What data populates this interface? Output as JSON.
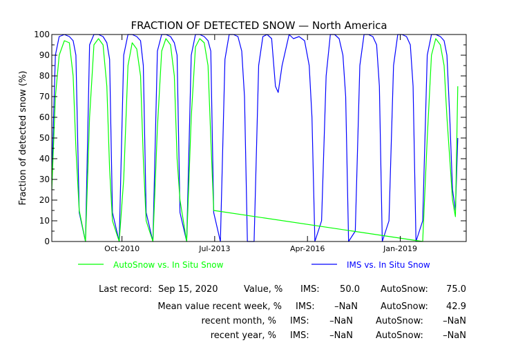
{
  "chart_data": {
    "type": "line",
    "title": "FRACTION OF DETECTED SNOW — North America",
    "ylabel": "Fraction of detected snow (%)",
    "xlabel": "",
    "ylim": [
      0,
      100
    ],
    "yticks": [
      0,
      10,
      20,
      30,
      40,
      50,
      60,
      70,
      80,
      90,
      100
    ],
    "xlim": [
      "2008-09-01",
      "2020-12-15"
    ],
    "xticks": [
      {
        "label": "Oct-2010",
        "date": "2010-10-01"
      },
      {
        "label": "Jul-2013",
        "date": "2013-07-01"
      },
      {
        "label": "Apr-2016",
        "date": "2016-04-01"
      },
      {
        "label": "Jan-2019",
        "date": "2019-01-01"
      }
    ],
    "grid": false,
    "legend_position": "bottom",
    "series": [
      {
        "name": "AutoSnow vs. In Situ Snow",
        "color": "#00ff00",
        "x": [
          "2008-09-01",
          "2008-10-10",
          "2008-11-20",
          "2009-01-15",
          "2009-03-10",
          "2009-04-20",
          "2009-05-20",
          "2009-06-25",
          "2009-09-01",
          "2009-10-15",
          "2009-12-01",
          "2010-01-20",
          "2010-03-10",
          "2010-04-20",
          "2010-05-20",
          "2010-06-20",
          "2010-09-01",
          "2010-10-20",
          "2010-12-05",
          "2011-01-20",
          "2011-03-10",
          "2011-04-20",
          "2011-05-20",
          "2011-06-20",
          "2011-09-01",
          "2011-10-20",
          "2011-12-05",
          "2012-01-20",
          "2012-03-10",
          "2012-04-20",
          "2012-05-20",
          "2012-06-20",
          "2012-09-01",
          "2012-10-20",
          "2012-12-05",
          "2013-01-20",
          "2013-03-10",
          "2013-04-20",
          "2013-05-20",
          "2013-06-20",
          "2019-09-01",
          "2019-10-20",
          "2019-12-05",
          "2020-01-20",
          "2020-03-10",
          "2020-04-20",
          "2020-05-20",
          "2020-06-20",
          "2020-07-20",
          "2020-08-20",
          "2020-09-15"
        ],
        "values": [
          25,
          70,
          90,
          97,
          96,
          80,
          45,
          15,
          0,
          60,
          95,
          98,
          95,
          75,
          35,
          10,
          0,
          30,
          85,
          96,
          93,
          80,
          40,
          10,
          0,
          55,
          92,
          98,
          95,
          80,
          40,
          20,
          0,
          60,
          94,
          98,
          96,
          85,
          50,
          15,
          0,
          50,
          90,
          98,
          95,
          85,
          60,
          40,
          20,
          12,
          75
        ]
      },
      {
        "name": "IMS vs. In Situ Snow",
        "color": "#0000ff",
        "x": [
          "2008-09-01",
          "2008-10-10",
          "2008-11-20",
          "2009-01-15",
          "2009-03-10",
          "2009-04-20",
          "2009-05-20",
          "2009-06-25",
          "2009-09-01",
          "2009-10-15",
          "2009-12-01",
          "2010-01-20",
          "2010-03-10",
          "2010-04-20",
          "2010-05-20",
          "2010-06-20",
          "2010-09-01",
          "2010-10-20",
          "2010-12-05",
          "2011-01-20",
          "2011-03-10",
          "2011-04-20",
          "2011-05-20",
          "2011-06-20",
          "2011-09-01",
          "2011-10-20",
          "2011-12-05",
          "2012-01-20",
          "2012-03-10",
          "2012-04-20",
          "2012-05-20",
          "2012-06-20",
          "2012-09-01",
          "2012-10-20",
          "2012-12-05",
          "2013-01-20",
          "2013-03-10",
          "2013-04-20",
          "2013-05-20",
          "2013-06-20",
          "2013-09-01",
          "2013-10-20",
          "2013-12-05",
          "2014-01-20",
          "2014-03-10",
          "2014-04-20",
          "2014-05-20",
          "2014-06-20",
          "2014-09-01",
          "2014-10-20",
          "2014-12-05",
          "2015-01-20",
          "2015-03-10",
          "2015-04-20",
          "2015-05-20",
          "2015-07-01",
          "2015-09-15",
          "2015-11-01",
          "2016-01-01",
          "2016-03-01",
          "2016-04-20",
          "2016-05-20",
          "2016-06-20",
          "2016-09-01",
          "2016-10-20",
          "2016-12-05",
          "2017-01-20",
          "2017-03-10",
          "2017-04-20",
          "2017-05-20",
          "2017-06-20",
          "2017-09-01",
          "2017-10-20",
          "2017-12-05",
          "2018-01-20",
          "2018-03-10",
          "2018-04-20",
          "2018-05-20",
          "2018-06-20",
          "2018-09-01",
          "2018-10-20",
          "2018-12-05",
          "2019-01-20",
          "2019-03-10",
          "2019-04-20",
          "2019-05-20",
          "2019-06-20",
          "2019-09-01",
          "2019-10-20",
          "2019-12-05",
          "2020-01-20",
          "2020-03-10",
          "2020-04-20",
          "2020-05-20",
          "2020-06-20",
          "2020-07-20",
          "2020-08-20",
          "2020-09-15"
        ],
        "values": [
          30,
          90,
          99,
          100,
          99,
          97,
          90,
          14,
          0,
          95,
          100,
          100,
          99,
          96,
          88,
          14,
          0,
          90,
          100,
          100,
          99,
          97,
          85,
          14,
          0,
          92,
          100,
          100,
          99,
          96,
          90,
          14,
          0,
          90,
          100,
          100,
          99,
          97,
          92,
          14,
          0,
          88,
          100,
          100,
          99,
          92,
          70,
          0,
          0,
          85,
          99,
          100,
          98,
          75,
          72,
          85,
          100,
          98,
          99,
          97,
          85,
          60,
          0,
          10,
          80,
          100,
          100,
          98,
          90,
          70,
          0,
          5,
          85,
          100,
          100,
          99,
          95,
          75,
          0,
          10,
          85,
          100,
          100,
          99,
          95,
          75,
          0,
          10,
          90,
          100,
          100,
          99,
          97,
          90,
          60,
          25,
          15,
          50
        ]
      }
    ]
  },
  "stats": {
    "last_record_label": "Last record:",
    "last_record_date": "Sep 15, 2020",
    "value_label": "Value, %",
    "ims_label": "IMS:",
    "autosnow_label": "AutoSnow:",
    "last_ims": "50.0",
    "last_autosnow": "75.0",
    "week_label": "Mean value recent week, %",
    "week_ims": "–NaN",
    "week_autosnow": "42.9",
    "month_label": "recent month, %",
    "month_ims": "–NaN",
    "month_autosnow": "–NaN",
    "year_label": "recent year, %",
    "year_ims": "–NaN",
    "year_autosnow": "–NaN"
  }
}
